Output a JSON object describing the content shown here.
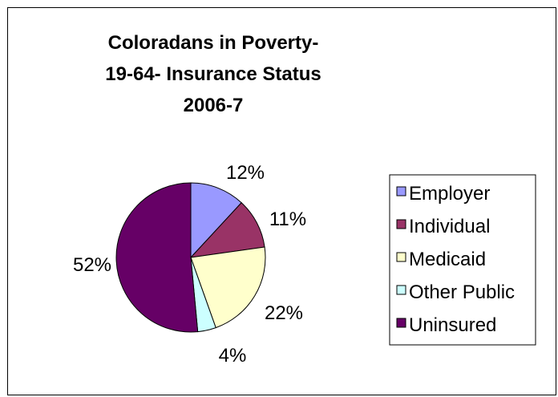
{
  "chart_data": {
    "type": "pie",
    "title_lines": [
      "Coloradans in Poverty-",
      "19-64- Insurance Status",
      "2006-7"
    ],
    "categories": [
      "Employer",
      "Individual",
      "Medicaid",
      "Other Public",
      "Uninsured"
    ],
    "values": [
      12,
      11,
      22,
      4,
      52
    ],
    "data_labels": [
      "12%",
      "11%",
      "22%",
      "4%",
      "52%"
    ],
    "colors": [
      "#9999ff",
      "#993366",
      "#ffffcc",
      "#ccffff",
      "#660066"
    ],
    "legend_position": "right",
    "start_angle_deg": 0,
    "direction": "clockwise"
  }
}
